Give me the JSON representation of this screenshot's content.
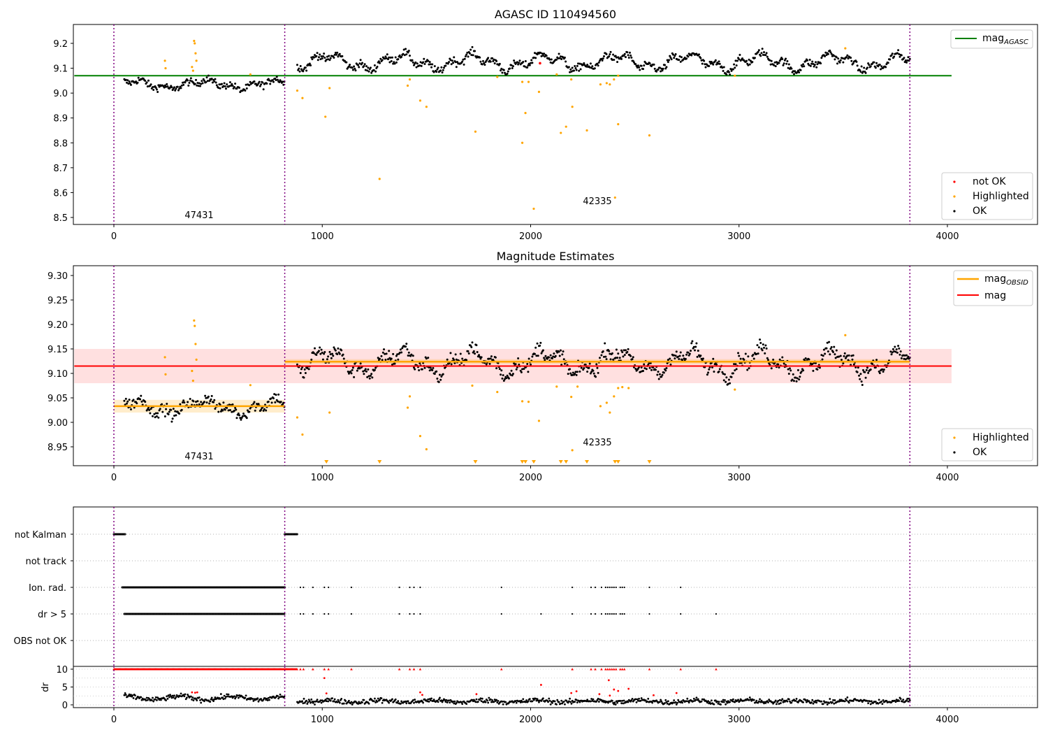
{
  "chart_data": [
    {
      "type": "scatter",
      "title": "AGASC ID 110494560",
      "xlabel": "",
      "ylabel": "",
      "xlim": [
        -190,
        4420
      ],
      "ylim": [
        8.47,
        9.27
      ],
      "xticks": [
        0,
        1000,
        2000,
        3000,
        4000
      ],
      "yticks": [
        8.5,
        8.6,
        8.7,
        8.8,
        8.9,
        9.0,
        9.1,
        9.2
      ],
      "ytick_labels": [
        "8.5",
        "8.6",
        "8.7",
        "8.8",
        "8.9",
        "9.0",
        "9.1",
        "9.2"
      ],
      "obsid_boundaries": [
        0,
        820,
        3820
      ],
      "obsid_labels": [
        {
          "text": "47431",
          "x": 410,
          "y": 8.51
        },
        {
          "text": "42335",
          "x": 2320,
          "y": 8.56
        }
      ],
      "hlines": [
        {
          "name": "mag",
          "subscript": "AGASC",
          "y": 9.07,
          "xmin": -190,
          "xmax": 4020,
          "color": "#008000"
        }
      ],
      "legend_top": [
        {
          "label": "mag",
          "subscript": "AGASC",
          "color": "#008000",
          "marker": "line"
        }
      ],
      "legend_bottom": [
        {
          "label": "not OK",
          "color": "#ff0000",
          "marker": "dot"
        },
        {
          "label": "Highlighted",
          "color": "#ffa500",
          "marker": "dot"
        },
        {
          "label": "OK",
          "color": "#000000",
          "marker": "dot"
        }
      ],
      "ok_trend": [
        {
          "x_start": 50,
          "x_end": 820,
          "base": 9.035,
          "amp": 0.015,
          "noise": 0.012
        },
        {
          "x_start": 880,
          "x_end": 3820,
          "base": 9.125,
          "amp": 0.025,
          "noise": 0.013
        }
      ],
      "highlighted": [
        [
          245,
          9.13
        ],
        [
          248,
          9.1
        ],
        [
          375,
          9.105
        ],
        [
          380,
          9.09
        ],
        [
          385,
          9.21
        ],
        [
          388,
          9.2
        ],
        [
          392,
          9.16
        ],
        [
          396,
          9.13
        ],
        [
          655,
          9.075
        ],
        [
          880,
          9.01
        ],
        [
          905,
          8.98
        ],
        [
          1015,
          8.905
        ],
        [
          1035,
          9.02
        ],
        [
          1275,
          8.655
        ],
        [
          1410,
          9.03
        ],
        [
          1420,
          9.055
        ],
        [
          1470,
          8.97
        ],
        [
          1500,
          8.945
        ],
        [
          1735,
          8.845
        ],
        [
          1840,
          9.065
        ],
        [
          1960,
          9.045
        ],
        [
          1960,
          8.8
        ],
        [
          1975,
          8.92
        ],
        [
          1990,
          9.045
        ],
        [
          2015,
          8.535
        ],
        [
          2040,
          9.005
        ],
        [
          2125,
          9.075
        ],
        [
          2145,
          8.84
        ],
        [
          2170,
          8.865
        ],
        [
          2195,
          9.055
        ],
        [
          2200,
          8.945
        ],
        [
          2270,
          8.85
        ],
        [
          2335,
          9.035
        ],
        [
          2365,
          9.04
        ],
        [
          2380,
          9.035
        ],
        [
          2400,
          9.055
        ],
        [
          2405,
          8.58
        ],
        [
          2420,
          9.07
        ],
        [
          2420,
          8.875
        ],
        [
          2570,
          8.83
        ],
        [
          2980,
          9.07
        ],
        [
          3510,
          9.18
        ]
      ],
      "not_ok": [
        [
          2045,
          9.12
        ]
      ]
    },
    {
      "type": "scatter",
      "title": "Magnitude Estimates",
      "xlabel": "",
      "ylabel": "",
      "xlim": [
        -190,
        4420
      ],
      "ylim": [
        8.91,
        9.32
      ],
      "xticks": [
        0,
        1000,
        2000,
        3000,
        4000
      ],
      "yticks": [
        8.95,
        9.0,
        9.05,
        9.1,
        9.15,
        9.2,
        9.25,
        9.3
      ],
      "ytick_labels": [
        "8.95",
        "9.00",
        "9.05",
        "9.10",
        "9.15",
        "9.20",
        "9.25",
        "9.30"
      ],
      "obsid_boundaries": [
        0,
        820,
        3820
      ],
      "obsid_labels": [
        {
          "text": "47431",
          "x": 410,
          "y": 8.925
        },
        {
          "text": "42335",
          "x": 2320,
          "y": 8.955
        }
      ],
      "mag": {
        "y": 9.115,
        "band": [
          9.08,
          9.15
        ],
        "xmin": -190,
        "xmax": 4020,
        "color": "#ff0000"
      },
      "mag_obsid": [
        {
          "x_start": 0,
          "x_end": 820,
          "y": 9.033,
          "band": [
            9.02,
            9.046
          ]
        },
        {
          "x_start": 820,
          "x_end": 3820,
          "y": 9.124,
          "band": [
            9.119,
            9.129
          ]
        }
      ],
      "legend_top": [
        {
          "label": "mag",
          "subscript": "OBSID",
          "color": "#ffa500",
          "marker": "line"
        },
        {
          "label": "mag",
          "subscript": "",
          "color": "#ff0000",
          "marker": "line"
        }
      ],
      "legend_bottom": [
        {
          "label": "Highlighted",
          "color": "#ffa500",
          "marker": "dot"
        },
        {
          "label": "OK",
          "color": "#000000",
          "marker": "dot"
        }
      ],
      "ok_trend": [
        {
          "x_start": 50,
          "x_end": 820,
          "base": 9.032,
          "amp": 0.012,
          "noise": 0.01
        },
        {
          "x_start": 880,
          "x_end": 3820,
          "base": 9.123,
          "amp": 0.02,
          "noise": 0.012
        }
      ],
      "highlighted": [
        [
          245,
          9.133
        ],
        [
          248,
          9.098
        ],
        [
          375,
          9.105
        ],
        [
          380,
          9.085
        ],
        [
          385,
          9.208
        ],
        [
          388,
          9.197
        ],
        [
          392,
          9.16
        ],
        [
          396,
          9.128
        ],
        [
          655,
          9.076
        ],
        [
          880,
          9.01
        ],
        [
          905,
          8.975
        ],
        [
          1035,
          9.02
        ],
        [
          1410,
          9.03
        ],
        [
          1420,
          9.053
        ],
        [
          1470,
          8.972
        ],
        [
          1500,
          8.945
        ],
        [
          1720,
          9.075
        ],
        [
          1840,
          9.062
        ],
        [
          1960,
          9.043
        ],
        [
          1990,
          9.042
        ],
        [
          2040,
          9.003
        ],
        [
          2125,
          9.073
        ],
        [
          2195,
          9.052
        ],
        [
          2200,
          8.943
        ],
        [
          2225,
          9.073
        ],
        [
          2335,
          9.033
        ],
        [
          2365,
          9.04
        ],
        [
          2380,
          9.02
        ],
        [
          2400,
          9.053
        ],
        [
          2420,
          9.07
        ],
        [
          2440,
          9.072
        ],
        [
          2470,
          9.07
        ],
        [
          2980,
          9.067
        ],
        [
          3510,
          9.178
        ]
      ],
      "offscale_down": [
        1020,
        1275,
        1735,
        1960,
        1975,
        2015,
        2145,
        2170,
        2270,
        2405,
        2420,
        2570
      ]
    },
    {
      "type": "scatter",
      "title": "",
      "xlabel": "",
      "ylabel": "",
      "xlim": [
        -190,
        4420
      ],
      "xticks": [
        0,
        1000,
        2000,
        3000,
        4000
      ],
      "obsid_boundaries": [
        0,
        820,
        3820
      ],
      "flag_rows": [
        "not Kalman",
        "not track",
        "Ion. rad.",
        "dr > 5",
        "OBS not OK"
      ],
      "flag_points": {
        "not Kalman": {
          "ranges": [
            [
              0,
              55
            ],
            [
              820,
              880
            ]
          ],
          "points": []
        },
        "not track": {
          "ranges": [],
          "points": []
        },
        "Ion. rad.": {
          "ranges": [
            [
              40,
              820
            ]
          ],
          "points": [
            895,
            910,
            955,
            1010,
            1030,
            1140,
            1370,
            1420,
            1440,
            1470,
            1860,
            2200,
            2290,
            2310,
            2340,
            2360,
            2370,
            2380,
            2390,
            2400,
            2410,
            2430,
            2440,
            2450,
            2570,
            2720
          ]
        },
        "dr > 5": {
          "ranges": [
            [
              50,
              820
            ]
          ],
          "points": [
            895,
            910,
            955,
            1010,
            1030,
            1140,
            1370,
            1420,
            1440,
            1470,
            1860,
            2050,
            2200,
            2290,
            2310,
            2340,
            2360,
            2370,
            2380,
            2390,
            2400,
            2410,
            2430,
            2440,
            2450,
            2570,
            2720,
            2890
          ]
        },
        "OBS not OK": {
          "ranges": [],
          "points": []
        }
      }
    },
    {
      "type": "scatter",
      "title": "",
      "xlabel": "",
      "ylabel": "dr",
      "xlim": [
        -190,
        4420
      ],
      "ylim": [
        -0.5,
        10.5
      ],
      "xticks": [
        0,
        1000,
        2000,
        3000,
        4000
      ],
      "yticks": [
        0,
        5,
        10
      ],
      "ytick_labels": [
        "0",
        "5",
        "10"
      ],
      "obsid_boundaries": [
        0,
        820,
        3820
      ],
      "dr_trend": [
        {
          "x_start": 50,
          "x_end": 820,
          "base": 1.9,
          "amp": 0.5
        },
        {
          "x_start": 880,
          "x_end": 3820,
          "base": 1.0,
          "amp": 0.3
        }
      ],
      "red_row": {
        "y": 10,
        "ranges": [
          [
            0,
            880
          ]
        ],
        "points": [
          895,
          910,
          955,
          1010,
          1030,
          1140,
          1370,
          1420,
          1440,
          1470,
          1860,
          2200,
          2290,
          2310,
          2340,
          2360,
          2370,
          2380,
          2390,
          2400,
          2410,
          2430,
          2440,
          2450,
          2570,
          2720,
          2890
        ]
      },
      "red_points": [
        [
          375,
          3.5
        ],
        [
          390,
          3.4
        ],
        [
          400,
          3.5
        ],
        [
          1010,
          7.5
        ],
        [
          1020,
          3.2
        ],
        [
          1470,
          3.5
        ],
        [
          1480,
          2.8
        ],
        [
          1740,
          3.0
        ],
        [
          2050,
          5.6
        ],
        [
          2195,
          3.3
        ],
        [
          2220,
          3.8
        ],
        [
          2330,
          3.0
        ],
        [
          2375,
          6.9
        ],
        [
          2380,
          2.6
        ],
        [
          2400,
          4.3
        ],
        [
          2420,
          3.9
        ],
        [
          2470,
          4.5
        ],
        [
          2590,
          2.7
        ],
        [
          2700,
          3.3
        ]
      ]
    }
  ]
}
